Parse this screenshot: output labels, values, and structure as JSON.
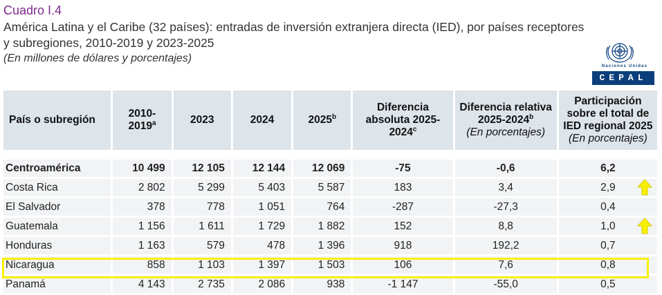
{
  "header": {
    "cuadro": "Cuadro I.4",
    "title": "América Latina y el Caribe (32 países): entradas de inversión extranjera directa (IED), por países receptores y subregiones, 2010-2019 y 2023-2025",
    "subtitle": "(En millones de dólares y porcentajes)"
  },
  "logo": {
    "org": "Naciones Unidas",
    "name": "CEPAL",
    "icon": "un-emblem-icon"
  },
  "columns": {
    "pais": "País o subregión",
    "c2010": "2010-2019",
    "c2010_sup": "a",
    "c2023": "2023",
    "c2024": "2024",
    "c2025": "2025",
    "c2025_sup": "b",
    "dif_abs": "Diferencia absoluta 2025-2024",
    "dif_abs_sup": "c",
    "dif_rel": "Diferencia relativa 2025-2024",
    "dif_rel_sup": "b",
    "dif_rel_note": "(En porcentajes)",
    "part": "Participación sobre el total de IED regional 2025",
    "part_note": "(En porcentajes)"
  },
  "rows": [
    {
      "name": "Centroamérica",
      "v2010": "10 499",
      "v2023": "12 105",
      "v2024": "12 144",
      "v2025": "12 069",
      "abs": "-75",
      "rel": "-0,6",
      "part": "6,2",
      "bold": true
    },
    {
      "name": "Costa Rica",
      "v2010": "2 802",
      "v2023": "5 299",
      "v2024": "5 403",
      "v2025": "5 587",
      "abs": "183",
      "rel": "3,4",
      "part": "2,9",
      "arrow": "up-arrow-icon"
    },
    {
      "name": "El Salvador",
      "v2010": "378",
      "v2023": "778",
      "v2024": "1 051",
      "v2025": "764",
      "abs": "-287",
      "rel": "-27,3",
      "part": "0,4"
    },
    {
      "name": "Guatemala",
      "v2010": "1 156",
      "v2023": "1 611",
      "v2024": "1 729",
      "v2025": "1 882",
      "abs": "152",
      "rel": "8,8",
      "part": "1,0",
      "arrow": "up-arrow-icon"
    },
    {
      "name": "Honduras",
      "v2010": "1 163",
      "v2023": "579",
      "v2024": "478",
      "v2025": "1 396",
      "abs": "918",
      "rel": "192,2",
      "part": "0,7"
    },
    {
      "name": "Nicaragua",
      "v2010": "858",
      "v2023": "1 103",
      "v2024": "1 397",
      "v2025": "1 503",
      "abs": "106",
      "rel": "7,6",
      "part": "0,8",
      "highlighted": true
    },
    {
      "name": "Panamá",
      "v2010": "4 143",
      "v2023": "2 735",
      "v2024": "2 086",
      "v2025": "938",
      "abs": "-1 147",
      "rel": "-55,0",
      "part": "0,5"
    }
  ],
  "colors": {
    "accent": "#7b2a8c",
    "header_bg": "#dde4ea",
    "row_bg": "#f1f3f5",
    "highlight": "#f7f000",
    "arrow": "#f7f000",
    "logo_blue": "#0a3f7c"
  }
}
